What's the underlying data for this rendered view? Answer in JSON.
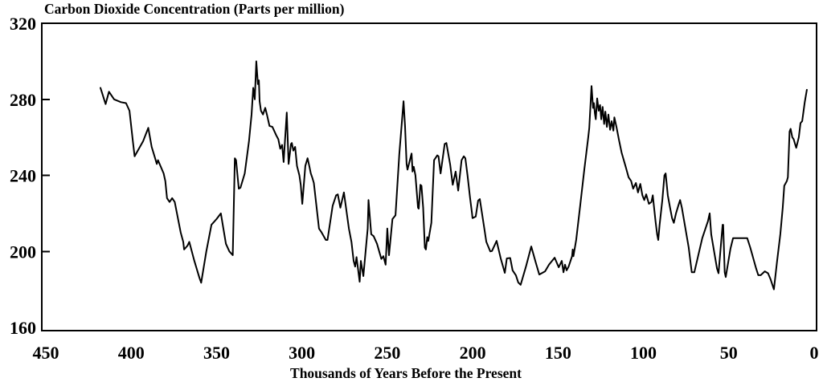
{
  "page": {
    "background": "#ffffff"
  },
  "chart_data": {
    "type": "line",
    "title": "Carbon Dioxide Concentration (Parts per million)",
    "xlabel": "Thousands of Years Before the Present",
    "ylabel": "",
    "xlim": [
      450,
      0
    ],
    "ylim": [
      160,
      320
    ],
    "x_axis_reversed": true,
    "grid": false,
    "legend": "none",
    "frame": "full-box",
    "line_color": "#000000",
    "axis_color": "#000000",
    "background": "#ffffff",
    "x_ticks": [
      450,
      400,
      350,
      300,
      250,
      200,
      150,
      100,
      50,
      0
    ],
    "y_ticks": [
      320,
      280,
      240,
      200,
      160
    ],
    "series": [
      {
        "name": "CO2 concentration (ppm)",
        "points": [
          [
            418,
            286
          ],
          [
            415,
            277.5
          ],
          [
            413,
            284
          ],
          [
            410,
            280
          ],
          [
            406,
            278.5
          ],
          [
            403,
            278
          ],
          [
            401,
            274
          ],
          [
            399,
            258
          ],
          [
            398,
            250
          ],
          [
            393,
            258
          ],
          [
            390,
            265
          ],
          [
            388,
            255
          ],
          [
            386,
            249
          ],
          [
            385,
            246
          ],
          [
            384.3,
            248
          ],
          [
            381,
            241
          ],
          [
            380,
            237
          ],
          [
            379,
            228
          ],
          [
            377.5,
            226
          ],
          [
            376,
            228
          ],
          [
            374.5,
            226
          ],
          [
            371,
            210
          ],
          [
            369.5,
            205
          ],
          [
            369,
            201
          ],
          [
            367,
            203
          ],
          [
            366,
            205
          ],
          [
            363,
            195
          ],
          [
            360,
            186
          ],
          [
            359,
            183.5
          ],
          [
            356,
            200
          ],
          [
            353,
            214
          ],
          [
            350,
            217
          ],
          [
            347.5,
            220
          ],
          [
            344.5,
            204
          ],
          [
            342.5,
            200
          ],
          [
            340.5,
            198
          ],
          [
            339.3,
            249
          ],
          [
            338.6,
            248
          ],
          [
            337,
            233
          ],
          [
            336,
            233.5
          ],
          [
            333.5,
            241
          ],
          [
            331,
            258
          ],
          [
            329.5,
            272
          ],
          [
            328.5,
            286
          ],
          [
            327.6,
            280
          ],
          [
            326.7,
            300
          ],
          [
            325.8,
            288
          ],
          [
            325.2,
            290
          ],
          [
            324.8,
            279
          ],
          [
            324,
            274
          ],
          [
            322.8,
            272
          ],
          [
            321.5,
            275.5
          ],
          [
            320.5,
            272
          ],
          [
            319,
            266
          ],
          [
            317.3,
            265.5
          ],
          [
            315,
            261
          ],
          [
            313.8,
            259
          ],
          [
            312.7,
            254
          ],
          [
            311.6,
            256
          ],
          [
            310.7,
            247
          ],
          [
            308.9,
            273
          ],
          [
            307.8,
            246
          ],
          [
            306.4,
            256.5
          ],
          [
            305.9,
            257
          ],
          [
            305,
            253
          ],
          [
            304,
            255
          ],
          [
            302.9,
            245
          ],
          [
            301.5,
            240
          ],
          [
            300.7,
            235
          ],
          [
            299.8,
            225
          ],
          [
            298,
            245
          ],
          [
            296.7,
            249
          ],
          [
            295.7,
            245
          ],
          [
            294.8,
            241
          ],
          [
            294,
            239
          ],
          [
            293,
            236
          ],
          [
            290,
            212
          ],
          [
            288.5,
            210
          ],
          [
            286,
            206
          ],
          [
            285,
            206
          ],
          [
            282,
            224
          ],
          [
            280,
            229.5
          ],
          [
            279,
            230
          ],
          [
            277.5,
            223
          ],
          [
            275.4,
            231
          ],
          [
            272.5,
            212
          ],
          [
            271,
            205
          ],
          [
            269.7,
            195
          ],
          [
            268.8,
            192
          ],
          [
            268,
            197
          ],
          [
            266.2,
            184
          ],
          [
            265.5,
            195
          ],
          [
            264,
            187
          ],
          [
            261.5,
            212
          ],
          [
            261,
            227
          ],
          [
            259.4,
            209
          ],
          [
            258,
            208
          ],
          [
            256,
            204
          ],
          [
            253.5,
            196
          ],
          [
            252.3,
            197.5
          ],
          [
            251,
            193
          ],
          [
            250,
            212
          ],
          [
            249,
            198
          ],
          [
            247,
            217
          ],
          [
            245.2,
            219
          ],
          [
            243,
            251
          ],
          [
            240.5,
            279
          ],
          [
            239.6,
            265.5
          ],
          [
            238.7,
            246
          ],
          [
            238.2,
            243
          ],
          [
            237.2,
            246.5
          ],
          [
            235.8,
            251.5
          ],
          [
            235.2,
            242
          ],
          [
            234.5,
            244.5
          ],
          [
            233.5,
            240
          ],
          [
            232,
            223
          ],
          [
            231.6,
            222.5
          ],
          [
            230.6,
            235
          ],
          [
            230,
            234.5
          ],
          [
            229,
            223
          ],
          [
            228,
            202
          ],
          [
            227.4,
            201
          ],
          [
            226.6,
            207.5
          ],
          [
            226,
            205.5
          ],
          [
            224.2,
            215
          ],
          [
            222.6,
            248
          ],
          [
            220.7,
            250.5
          ],
          [
            220,
            250
          ],
          [
            218.8,
            241
          ],
          [
            216.4,
            256.5
          ],
          [
            215.4,
            257
          ],
          [
            213.2,
            245.7
          ],
          [
            211.7,
            235
          ],
          [
            210,
            242
          ],
          [
            208.5,
            232
          ],
          [
            206.5,
            248
          ],
          [
            205.2,
            250
          ],
          [
            204.3,
            249
          ],
          [
            203,
            240
          ],
          [
            201.5,
            228
          ],
          [
            200.4,
            220
          ],
          [
            200.1,
            217.5
          ],
          [
            198.2,
            218.3
          ],
          [
            196.8,
            226.7
          ],
          [
            195.8,
            227.5
          ],
          [
            193.5,
            214
          ],
          [
            192,
            205
          ],
          [
            189.7,
            200
          ],
          [
            188.7,
            200.2
          ],
          [
            186,
            205.5
          ],
          [
            183.6,
            196.3
          ],
          [
            181.2,
            188.7
          ],
          [
            180,
            196.3
          ],
          [
            178,
            196.5
          ],
          [
            176.6,
            190
          ],
          [
            174.7,
            187.4
          ],
          [
            173.3,
            183.7
          ],
          [
            171.9,
            182.4
          ],
          [
            168.8,
            192
          ],
          [
            165.7,
            202.6
          ],
          [
            163,
            194
          ],
          [
            161,
            187.8
          ],
          [
            157.6,
            189.5
          ],
          [
            155.3,
            193
          ],
          [
            152,
            196.7
          ],
          [
            149.6,
            191.6
          ],
          [
            147.8,
            195
          ],
          [
            146.8,
            189
          ],
          [
            145.9,
            193
          ],
          [
            145,
            190
          ],
          [
            143.8,
            192
          ],
          [
            141.8,
            197.5
          ],
          [
            141.4,
            201
          ],
          [
            141,
            197.5
          ],
          [
            139.4,
            206
          ],
          [
            137,
            224.5
          ],
          [
            134.6,
            243
          ],
          [
            132.3,
            260
          ],
          [
            131.7,
            265
          ],
          [
            130.4,
            287
          ],
          [
            129.5,
            275.5
          ],
          [
            129,
            278
          ],
          [
            128.4,
            272.5
          ],
          [
            127.9,
            269.5
          ],
          [
            127.1,
            280.5
          ],
          [
            126.2,
            274
          ],
          [
            125.4,
            277
          ],
          [
            124.7,
            269.5
          ],
          [
            123.9,
            276
          ],
          [
            123,
            267
          ],
          [
            122.3,
            273.5
          ],
          [
            121.4,
            265.5
          ],
          [
            120.5,
            272
          ],
          [
            119.5,
            264
          ],
          [
            118.6,
            268.5
          ],
          [
            117.6,
            263.5
          ],
          [
            117,
            270.5
          ],
          [
            115.8,
            265.5
          ],
          [
            114.3,
            258.5
          ],
          [
            112.8,
            252
          ],
          [
            110.4,
            244.5
          ],
          [
            108.7,
            239
          ],
          [
            107.2,
            237
          ],
          [
            106,
            233
          ],
          [
            104.4,
            236
          ],
          [
            103.2,
            231
          ],
          [
            101.8,
            235.5
          ],
          [
            100.6,
            229.5
          ],
          [
            99.5,
            227
          ],
          [
            98.4,
            230
          ],
          [
            96.8,
            225
          ],
          [
            95.3,
            226
          ],
          [
            94.5,
            229.5
          ],
          [
            92.9,
            216
          ],
          [
            92,
            209
          ],
          [
            91.3,
            206
          ],
          [
            90.5,
            214
          ],
          [
            88.9,
            227
          ],
          [
            87.7,
            240
          ],
          [
            87,
            241
          ],
          [
            85.7,
            229.5
          ],
          [
            84.4,
            223
          ],
          [
            83.2,
            217.5
          ],
          [
            82.2,
            215
          ],
          [
            80.9,
            220
          ],
          [
            79.4,
            224.5
          ],
          [
            78.5,
            227
          ],
          [
            77.5,
            223
          ],
          [
            73.5,
            202
          ],
          [
            71.7,
            189
          ],
          [
            70.2,
            189
          ],
          [
            65.5,
            207
          ],
          [
            62.2,
            216
          ],
          [
            61.2,
            220
          ],
          [
            60.3,
            209
          ],
          [
            56.9,
            191
          ],
          [
            56,
            188.5
          ],
          [
            53.6,
            214
          ],
          [
            53.3,
            214
          ],
          [
            52.4,
            189
          ],
          [
            51.8,
            186.5
          ],
          [
            49,
            201.5
          ],
          [
            47.5,
            207
          ],
          [
            47,
            207
          ],
          [
            39.2,
            207
          ],
          [
            37.4,
            202
          ],
          [
            34,
            191
          ],
          [
            32.7,
            187.5
          ],
          [
            31.3,
            187.5
          ],
          [
            28.9,
            189.5
          ],
          [
            27,
            188.5
          ],
          [
            25.6,
            185.5
          ],
          [
            23.6,
            180
          ],
          [
            21.7,
            195
          ],
          [
            19.8,
            209
          ],
          [
            18.4,
            223
          ],
          [
            17.5,
            234.5
          ],
          [
            16,
            237
          ],
          [
            15.4,
            239
          ],
          [
            14.4,
            263
          ],
          [
            13.8,
            264.5
          ],
          [
            12.8,
            260
          ],
          [
            12,
            259
          ],
          [
            11,
            256
          ],
          [
            10.5,
            254.5
          ],
          [
            9,
            260
          ],
          [
            8,
            267.5
          ],
          [
            7,
            268.5
          ],
          [
            5.5,
            278.5
          ],
          [
            4.3,
            285
          ]
        ]
      }
    ]
  }
}
